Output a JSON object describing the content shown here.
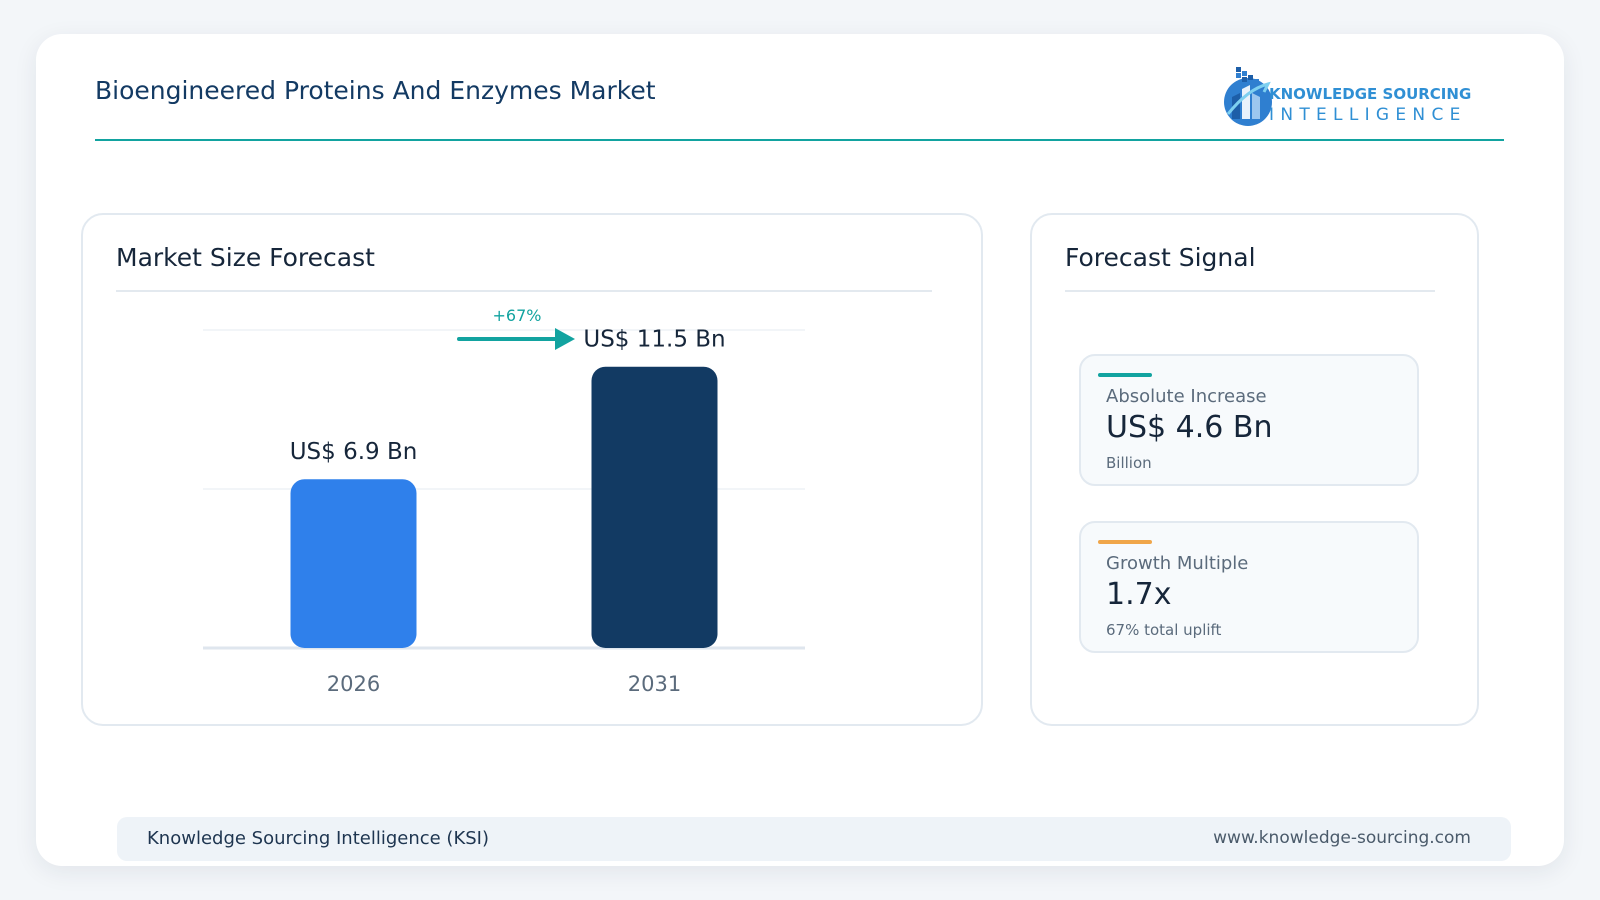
{
  "header": {
    "title": "Bioengineered Proteins And Enzymes Market",
    "logo_line1": "KNOWLEDGE SOURCING",
    "logo_line2": "INTELLIGENCE"
  },
  "chart_panel": {
    "title": "Market Size Forecast"
  },
  "chart_data": {
    "type": "bar",
    "title": "Market Size Forecast",
    "categories": [
      "2026",
      "2031"
    ],
    "values": [
      6.9,
      11.5
    ],
    "data_labels": [
      "US$ 6.9 Bn",
      "US$ 11.5 Bn"
    ],
    "bar_colors": [
      "#2f80eb",
      "#123a63"
    ],
    "growth_label": "+67%",
    "ylim": [
      0,
      13
    ],
    "grid": true,
    "xlabel": "",
    "ylabel": ""
  },
  "signal_panel": {
    "title": "Forecast Signal",
    "metrics": [
      {
        "label": "Absolute Increase",
        "value": "US$ 4.6 Bn",
        "sub": "Billion",
        "accent": "#12a3a0"
      },
      {
        "label": "Growth Multiple",
        "value": "1.7x",
        "sub": "67% total uplift",
        "accent": "#f0a64a"
      }
    ]
  },
  "footer": {
    "left": "Knowledge Sourcing Intelligence (KSI)",
    "right": "www.knowledge-sourcing.com"
  },
  "colors": {
    "accent": "#12a3a0",
    "brand": "#2f8fd4",
    "bar_2026": "#2f80eb",
    "bar_2031": "#123a63"
  }
}
